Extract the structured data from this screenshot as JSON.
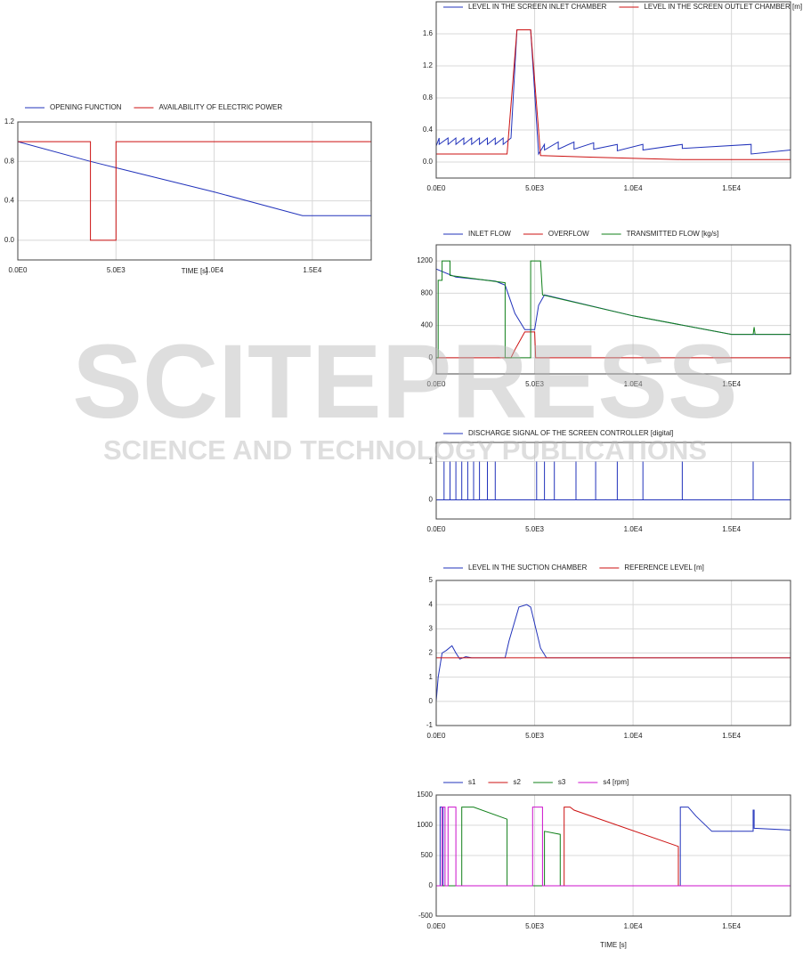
{
  "chart_data": [
    {
      "type": "line",
      "x_label": "TIME [s]",
      "xlim": [
        0,
        18000
      ],
      "ylim": [
        -0.2,
        1.2
      ],
      "xticks": [
        {
          "value": 0,
          "label": "0.0E0"
        },
        {
          "value": 5000,
          "label": "5.0E3"
        },
        {
          "value": 10000,
          "label": "1.0E4"
        },
        {
          "value": 15000,
          "label": "1.5E4"
        }
      ],
      "yticks": [
        {
          "value": 0,
          "label": "0.0"
        },
        0.4,
        0.8,
        1.2
      ],
      "grid": true,
      "series": [
        {
          "name": "OPENING FUNCTION",
          "color": "#2233bb",
          "x": [
            0,
            3700,
            4900,
            10000,
            14500,
            18000
          ],
          "values": [
            1.0,
            0.8,
            0.74,
            0.49,
            0.25,
            0.25
          ]
        },
        {
          "name": "AVAILABILITY OF ELECTRIC POWER",
          "color": "#cc1111",
          "x": [
            0,
            3700,
            3700,
            5000,
            5000,
            18000
          ],
          "values": [
            1,
            1,
            0,
            0,
            1,
            1
          ]
        }
      ]
    },
    {
      "type": "line",
      "xlim": [
        0,
        18000
      ],
      "ylim": [
        -0.2,
        2.0
      ],
      "xticks": [
        {
          "value": 0,
          "label": "0.0E0"
        },
        {
          "value": 5000,
          "label": "5.0E3"
        },
        {
          "value": 10000,
          "label": "1.0E4"
        },
        {
          "value": 15000,
          "label": "1.5E4"
        }
      ],
      "yticks": [
        {
          "value": 0,
          "label": "0.0"
        },
        0.4,
        0.8,
        1.2,
        1.6
      ],
      "grid": true,
      "series": [
        {
          "name": "LEVEL IN THE SCREEN INLET CHAMBER",
          "color": "#2233bb",
          "x": [
            0,
            150,
            150,
            600,
            600,
            1000,
            1000,
            1400,
            1400,
            1800,
            1800,
            2200,
            2200,
            2600,
            2600,
            3000,
            3000,
            3400,
            3400,
            3800,
            4100,
            4800,
            5200,
            5500,
            5500,
            6200,
            6200,
            7000,
            7000,
            8000,
            8000,
            9200,
            9200,
            10500,
            10500,
            12500,
            12500,
            16000,
            16000,
            18000
          ],
          "values": [
            0.2,
            0.3,
            0.22,
            0.3,
            0.22,
            0.3,
            0.22,
            0.3,
            0.22,
            0.3,
            0.22,
            0.3,
            0.22,
            0.3,
            0.22,
            0.3,
            0.22,
            0.3,
            0.22,
            0.3,
            1.65,
            1.65,
            0.1,
            0.22,
            0.15,
            0.25,
            0.16,
            0.25,
            0.16,
            0.24,
            0.16,
            0.22,
            0.14,
            0.22,
            0.15,
            0.22,
            0.17,
            0.22,
            0.1,
            0.15
          ]
        },
        {
          "name": "LEVEL IN THE SCREEN OUTLET CHAMBER [m]",
          "color": "#cc1111",
          "x": [
            0,
            3600,
            4100,
            4800,
            5300,
            8000,
            12500,
            18000
          ],
          "values": [
            0.1,
            0.1,
            1.65,
            1.65,
            0.08,
            0.06,
            0.03,
            0.03
          ]
        }
      ]
    },
    {
      "type": "line",
      "xlim": [
        0,
        18000
      ],
      "ylim": [
        -200,
        1400
      ],
      "xticks": [
        {
          "value": 0,
          "label": "0.0E0"
        },
        {
          "value": 5000,
          "label": "5.0E3"
        },
        {
          "value": 10000,
          "label": "1.0E4"
        },
        {
          "value": 15000,
          "label": "1.5E4"
        }
      ],
      "yticks": [
        0,
        400,
        800,
        1200
      ],
      "grid": true,
      "series": [
        {
          "name": "INLET FLOW",
          "color": "#2233bb",
          "x": [
            0,
            1000,
            3000,
            3500,
            4000,
            4500,
            5000,
            5200,
            5500,
            10000,
            15000,
            18000
          ],
          "values": [
            1100,
            1000,
            950,
            900,
            550,
            350,
            350,
            650,
            780,
            520,
            290,
            290
          ]
        },
        {
          "name": "OVERFLOW",
          "color": "#cc1111",
          "x": [
            0,
            3800,
            4000,
            4500,
            5000,
            5050,
            18000
          ],
          "values": [
            0,
            0,
            100,
            320,
            320,
            0,
            0
          ]
        },
        {
          "name": "TRANSMITTED FLOW [kg/s]",
          "color": "#11801a",
          "x": [
            0,
            100,
            100,
            300,
            300,
            700,
            700,
            3500,
            3500,
            4800,
            4800,
            5300,
            5400,
            10000,
            15000,
            16100,
            16150,
            16200,
            18000
          ],
          "values": [
            0,
            0,
            960,
            960,
            1200,
            1200,
            1020,
            930,
            0,
            0,
            1200,
            1200,
            780,
            520,
            290,
            290,
            380,
            290,
            290
          ]
        }
      ]
    },
    {
      "type": "line",
      "xlim": [
        0,
        18000
      ],
      "ylim": [
        -0.5,
        1.5
      ],
      "xticks": [
        {
          "value": 0,
          "label": "0.0E0"
        },
        {
          "value": 5000,
          "label": "5.0E3"
        },
        {
          "value": 10000,
          "label": "1.0E4"
        },
        {
          "value": 15000,
          "label": "1.5E4"
        }
      ],
      "yticks": [
        0,
        1
      ],
      "grid": true,
      "series": [
        {
          "name": "DISCHARGE SIGNAL OF THE SCREEN CONTROLLER [digital]",
          "color": "#2233bb",
          "x": [
            0,
            400,
            400,
            400,
            700,
            700,
            700,
            1000,
            1000,
            1000,
            1300,
            1300,
            1300,
            1600,
            1600,
            1600,
            1900,
            1900,
            1900,
            2200,
            2200,
            2200,
            2600,
            2600,
            2600,
            3000,
            3000,
            3000,
            5100,
            5100,
            5100,
            5500,
            5500,
            5500,
            6000,
            6000,
            6000,
            7100,
            7100,
            7100,
            8100,
            8100,
            8100,
            9200,
            9200,
            9200,
            10500,
            10500,
            10500,
            12500,
            12500,
            12500,
            16100,
            16100,
            16100,
            18000
          ],
          "values": [
            0,
            0,
            1,
            0,
            0,
            1,
            0,
            0,
            1,
            0,
            0,
            1,
            0,
            0,
            1,
            0,
            0,
            1,
            0,
            0,
            1,
            0,
            0,
            1,
            0,
            0,
            1,
            0,
            0,
            1,
            0,
            0,
            1,
            0,
            0,
            1,
            0,
            0,
            1,
            0,
            0,
            1,
            0,
            0,
            1,
            0,
            0,
            1,
            0,
            0,
            1,
            0,
            0,
            1,
            0,
            0
          ]
        }
      ]
    },
    {
      "type": "line",
      "xlim": [
        0,
        18000
      ],
      "ylim": [
        -1,
        5
      ],
      "xticks": [
        {
          "value": 0,
          "label": "0.0E0"
        },
        {
          "value": 5000,
          "label": "5.0E3"
        },
        {
          "value": 10000,
          "label": "1.0E4"
        },
        {
          "value": 15000,
          "label": "1.5E4"
        }
      ],
      "yticks": [
        -1,
        0,
        1,
        2,
        3,
        4,
        5
      ],
      "grid": true,
      "series": [
        {
          "name": "LEVEL IN THE SUCTION CHAMBER",
          "color": "#2233bb",
          "x": [
            0,
            100,
            300,
            500,
            800,
            1000,
            1200,
            1500,
            1800,
            3500,
            3700,
            4200,
            4600,
            4800,
            5300,
            5600,
            18000
          ],
          "values": [
            0,
            1.0,
            2.0,
            2.1,
            2.3,
            2.0,
            1.75,
            1.85,
            1.8,
            1.8,
            2.5,
            3.9,
            4.0,
            3.9,
            2.2,
            1.8,
            1.8
          ]
        },
        {
          "name": "REFERENCE LEVEL [m]",
          "color": "#cc1111",
          "x": [
            0,
            18000
          ],
          "values": [
            1.8,
            1.8
          ]
        }
      ]
    },
    {
      "type": "line",
      "x_label": "TIME [s]",
      "xlim": [
        0,
        18000
      ],
      "ylim": [
        -500,
        1500
      ],
      "xticks": [
        {
          "value": 0,
          "label": "0.0E0"
        },
        {
          "value": 5000,
          "label": "5.0E3"
        },
        {
          "value": 10000,
          "label": "1.0E4"
        },
        {
          "value": 15000,
          "label": "1.5E4"
        }
      ],
      "yticks": [
        -500,
        0,
        500,
        1000,
        1500
      ],
      "grid": true,
      "series": [
        {
          "name": "s1",
          "color": "#2233bb",
          "x": [
            0,
            200,
            200,
            350,
            350,
            12400,
            12400,
            12800,
            13200,
            14000,
            16100,
            16100,
            16150,
            16150,
            18000
          ],
          "values": [
            0,
            0,
            1300,
            1300,
            0,
            0,
            1300,
            1300,
            1150,
            900,
            900,
            1250,
            1250,
            950,
            920
          ]
        },
        {
          "name": "s2",
          "color": "#cc1111",
          "x": [
            0,
            6500,
            6500,
            6800,
            7000,
            12300,
            12300,
            18000
          ],
          "values": [
            0,
            0,
            1300,
            1300,
            1250,
            650,
            0,
            0
          ]
        },
        {
          "name": "s3",
          "color": "#11801a",
          "x": [
            0,
            1300,
            1300,
            1900,
            3600,
            3600,
            5500,
            5500,
            6300,
            6300,
            18000
          ],
          "values": [
            0,
            0,
            1300,
            1300,
            1100,
            0,
            0,
            900,
            850,
            0,
            0
          ]
        },
        {
          "name": "s4 [rpm]",
          "color": "#cc11cc",
          "x": [
            0,
            300,
            300,
            450,
            450,
            600,
            600,
            1000,
            1000,
            4900,
            4900,
            5400,
            5400,
            18000
          ],
          "values": [
            0,
            0,
            1300,
            1300,
            0,
            0,
            1300,
            1300,
            0,
            0,
            1300,
            1300,
            0,
            0
          ]
        }
      ]
    }
  ],
  "watermark": {
    "title": "SCITEPRESS",
    "subtitle": "SCIENCE AND TECHNOLOGY PUBLICATIONS"
  }
}
